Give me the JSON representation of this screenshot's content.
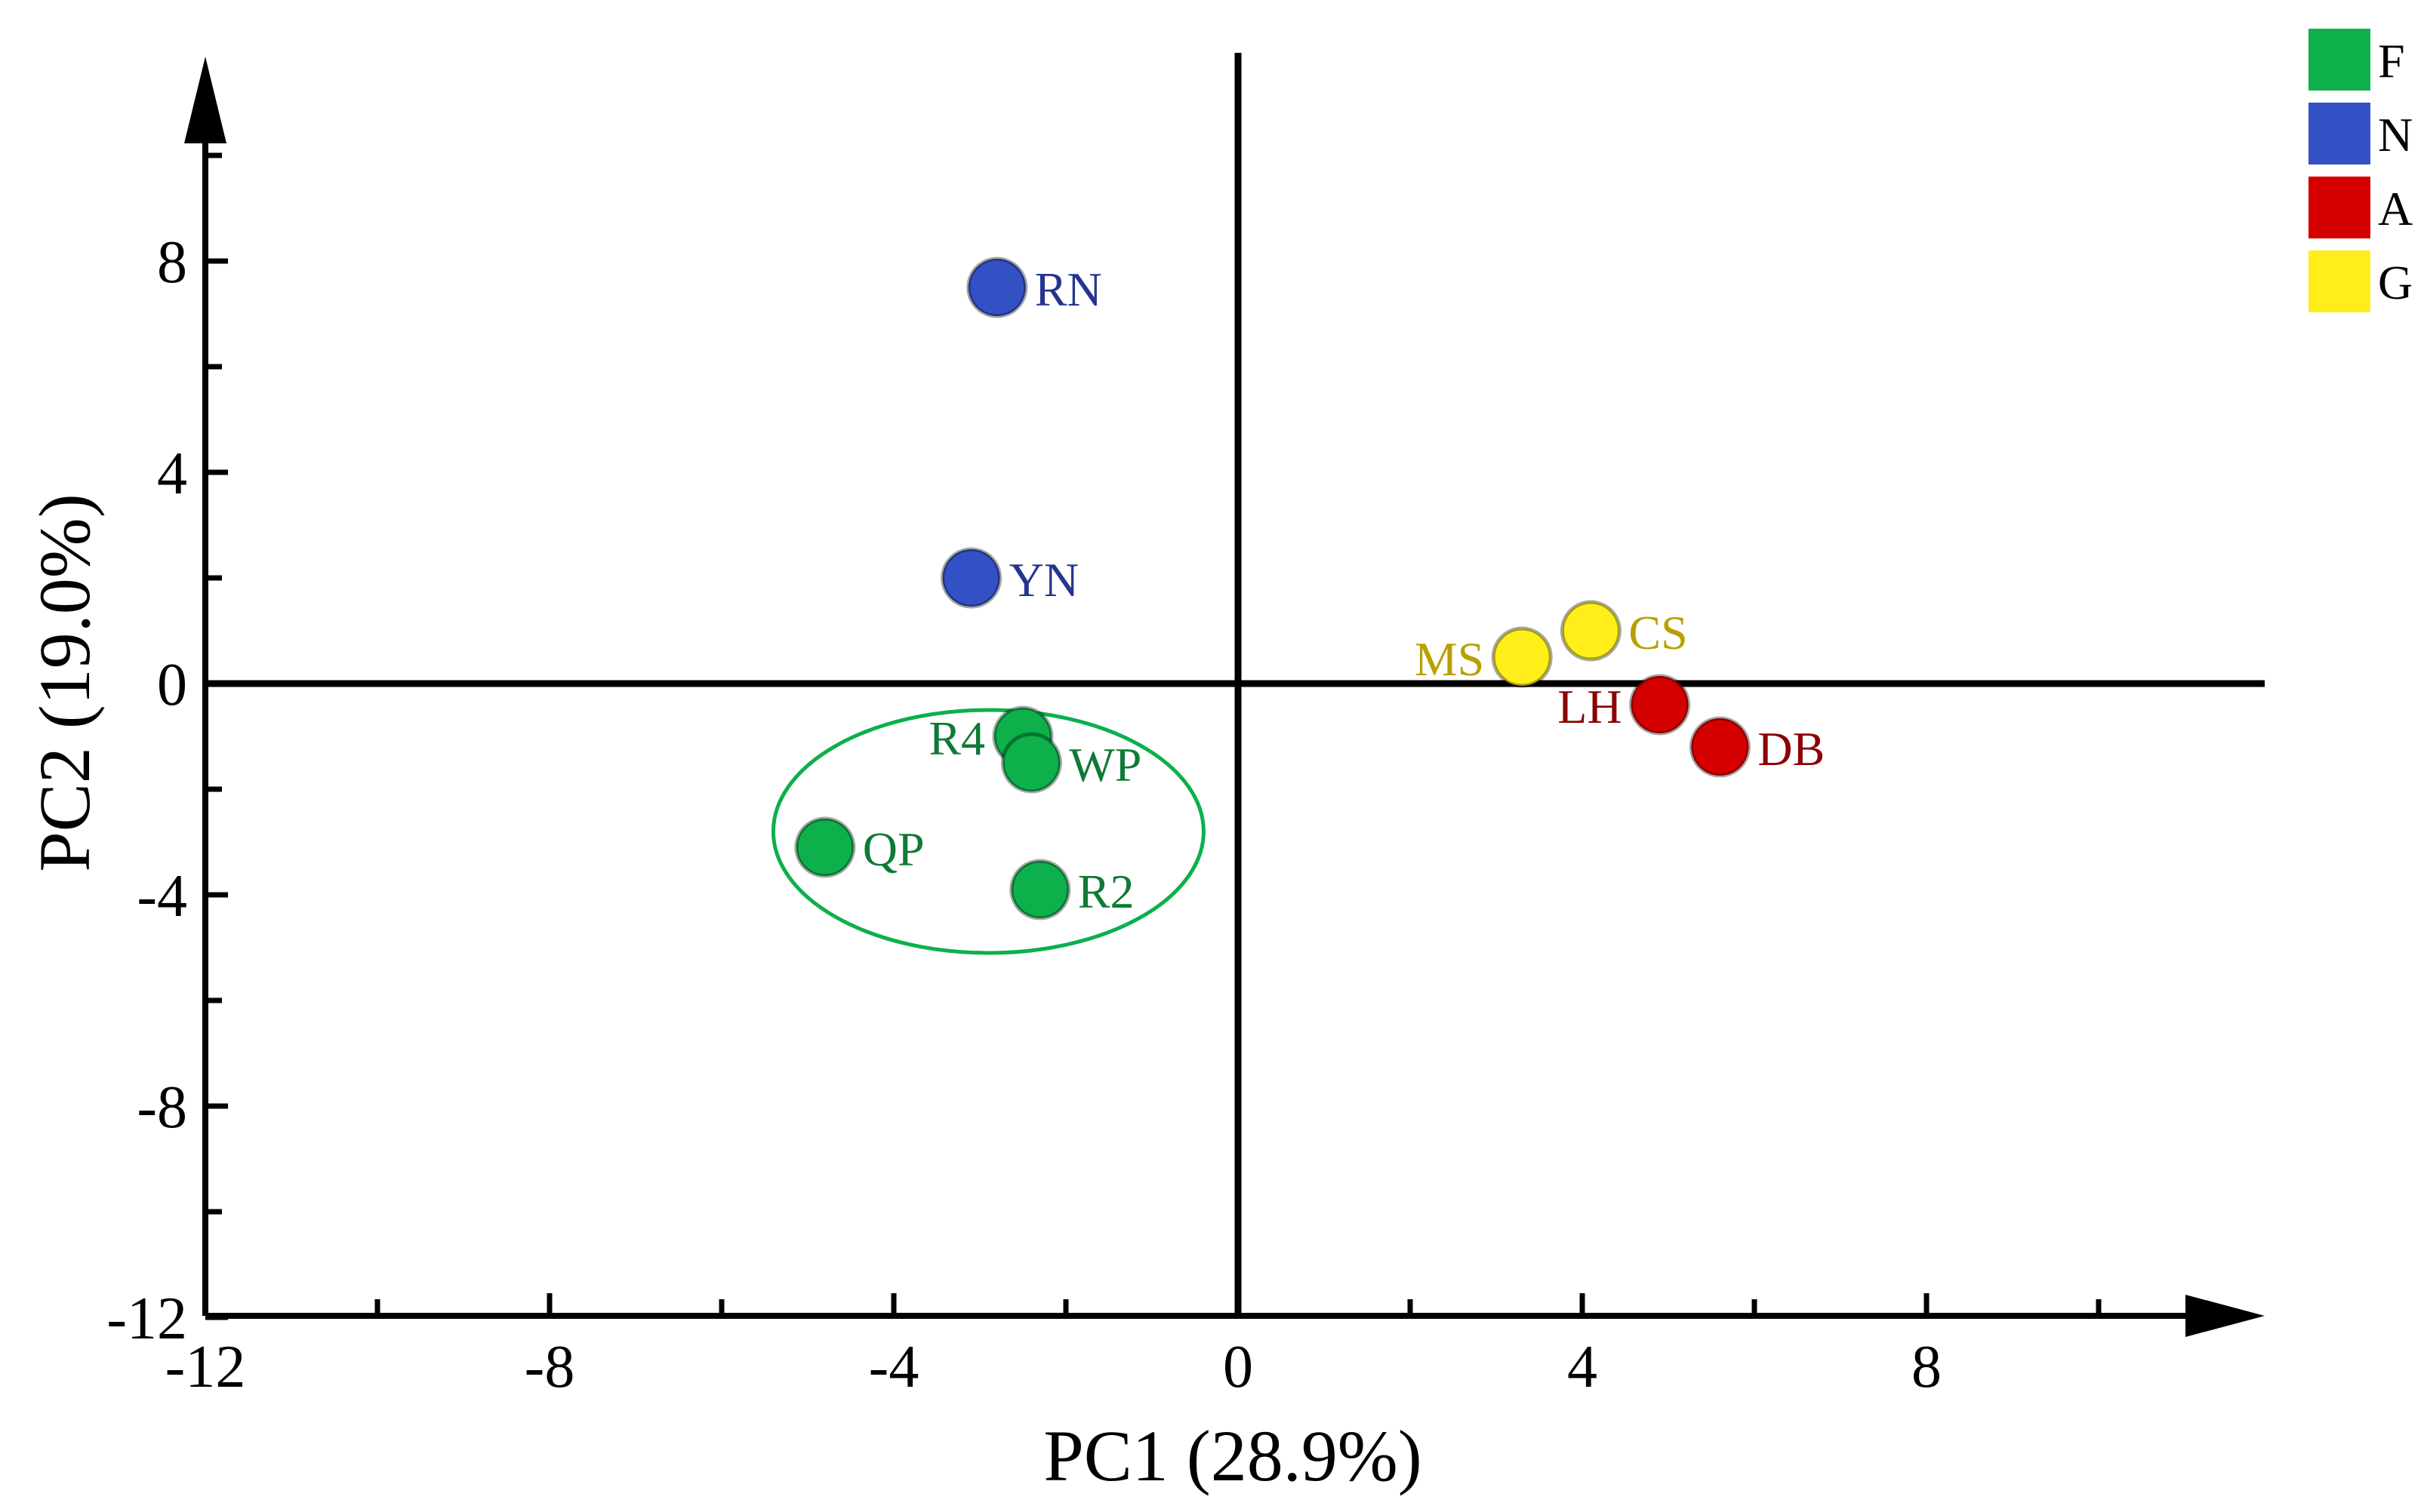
{
  "chart_data": {
    "type": "scatter",
    "title": "",
    "xlabel": "PC1 (28.9%)",
    "ylabel": "PC2 (19.0%)",
    "xlim": [
      -12,
      12
    ],
    "ylim": [
      -12,
      12
    ],
    "x_ticks": [
      -12,
      -8,
      -4,
      0,
      4,
      8
    ],
    "y_ticks": [
      -12,
      -8,
      -4,
      0,
      4,
      8
    ],
    "x_tick_labels": [
      "-12",
      "-8",
      "-4",
      "0",
      "4",
      "8"
    ],
    "y_tick_labels": [
      "-12",
      "-8",
      "-4",
      "0",
      "4",
      "8"
    ],
    "grid": false,
    "legend_position": "top-right",
    "groups": [
      {
        "name": "F",
        "color": "#0db04b",
        "text_color": "#0e7a35"
      },
      {
        "name": "N",
        "color": "#3350c4",
        "text_color": "#25358f"
      },
      {
        "name": "A",
        "color": "#d40000",
        "text_color": "#8b0000"
      },
      {
        "name": "G",
        "color": "#ffee1a",
        "text_color": "#b8a000"
      }
    ],
    "points": [
      {
        "label": "RN",
        "group": "N",
        "x": -2.8,
        "y": 7.5,
        "label_side": "right"
      },
      {
        "label": "YN",
        "group": "N",
        "x": -3.1,
        "y": 2.0,
        "label_side": "right"
      },
      {
        "label": "R4",
        "group": "F",
        "x": -2.5,
        "y": -1.0,
        "label_side": "left"
      },
      {
        "label": "WP",
        "group": "F",
        "x": -2.4,
        "y": -1.5,
        "label_side": "right"
      },
      {
        "label": "QP",
        "group": "F",
        "x": -4.8,
        "y": -3.1,
        "label_side": "right"
      },
      {
        "label": "R2",
        "group": "F",
        "x": -2.3,
        "y": -3.9,
        "label_side": "right"
      },
      {
        "label": "CS",
        "group": "G",
        "x": 4.1,
        "y": 1.0,
        "label_side": "right"
      },
      {
        "label": "MS",
        "group": "G",
        "x": 3.3,
        "y": 0.5,
        "label_side": "left"
      },
      {
        "label": "LH",
        "group": "A",
        "x": 4.9,
        "y": -0.4,
        "label_side": "left"
      },
      {
        "label": "DB",
        "group": "A",
        "x": 5.6,
        "y": -1.2,
        "label_side": "right"
      }
    ],
    "annotations": [
      {
        "type": "ellipse",
        "group": "F",
        "cx": -2.9,
        "cy": -2.8,
        "rx": 2.5,
        "ry": 2.3
      }
    ]
  }
}
